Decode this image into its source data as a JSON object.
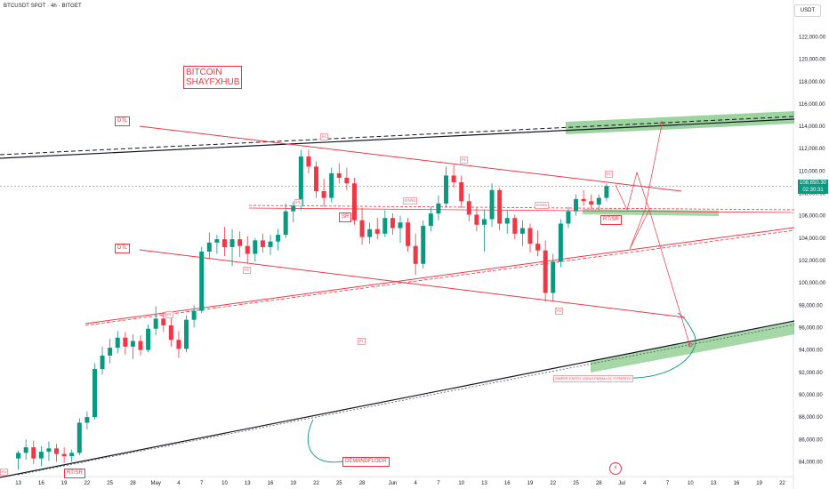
{
  "header": {
    "title": "BTCUSDT SPOT · 4h · BITGET",
    "currency": "USDT"
  },
  "brand": {
    "line1": "BITCOIN",
    "line2": "SHAYFXHUB"
  },
  "price_tag": {
    "price": "108,650.30",
    "timer": "02:30:31"
  },
  "labels": {
    "dtl_top": "DTL",
    "dtl_mid": "DTL",
    "sr": "SR",
    "rt_sr_right": "RT/SR",
    "rt_sr_bottom": "RT/SR",
    "demandfloor": "DEMANDFLOOR",
    "sniper": "SNIPER ENTRY USING PARALLEL STRATEGY"
  },
  "tiny_labels": {
    "rt_rs_1": "RT/RS",
    "rt_rs_2": "RT/RS",
    "p1": "P1",
    "p2": "P1",
    "p3": "P1",
    "p4": "P1",
    "p5": "P1",
    "p6": "P2",
    "p7": "P2",
    "p8": "P2",
    "p9": "P1"
  },
  "colors": {
    "up": "#089981",
    "down": "#f23645",
    "accent_red": "#f23645",
    "green_zone": "#4caf50"
  },
  "chart_data": {
    "type": "candlestick",
    "symbol": "BTCUSDT SPOT",
    "timeframe": "4h",
    "exchange": "BITGET",
    "y_axis": {
      "ylim": [
        83000,
        124500
      ],
      "ticks": [
        "84,000.00",
        "86,000.00",
        "88,000.00",
        "90,000.00",
        "92,000.00",
        "94,000.00",
        "96,000.00",
        "98,000.00",
        "100,000.00",
        "102,000.00",
        "104,000.00",
        "106,000.00",
        "108,000.00",
        "110,000.00",
        "112,000.00",
        "114,000.00",
        "116,000.00",
        "118,000.00",
        "120,000.00",
        "122,000.00"
      ]
    },
    "x_axis": {
      "ticks": [
        {
          "label": "13",
          "t": 0
        },
        {
          "label": "16",
          "t": 3
        },
        {
          "label": "19",
          "t": 6
        },
        {
          "label": "22",
          "t": 9
        },
        {
          "label": "25",
          "t": 12
        },
        {
          "label": "28",
          "t": 15
        },
        {
          "label": "May",
          "t": 18
        },
        {
          "label": "4",
          "t": 21
        },
        {
          "label": "7",
          "t": 24
        },
        {
          "label": "10",
          "t": 27
        },
        {
          "label": "13",
          "t": 30
        },
        {
          "label": "16",
          "t": 33
        },
        {
          "label": "19",
          "t": 36
        },
        {
          "label": "22",
          "t": 39
        },
        {
          "label": "25",
          "t": 42
        },
        {
          "label": "28",
          "t": 45
        },
        {
          "label": "Jun",
          "t": 49
        },
        {
          "label": "4",
          "t": 52
        },
        {
          "label": "7",
          "t": 55
        },
        {
          "label": "10",
          "t": 58
        },
        {
          "label": "13",
          "t": 61
        },
        {
          "label": "16",
          "t": 64
        },
        {
          "label": "19",
          "t": 67
        },
        {
          "label": "22",
          "t": 70
        },
        {
          "label": "25",
          "t": 73
        },
        {
          "label": "28",
          "t": 76
        },
        {
          "label": "Jul",
          "t": 79
        },
        {
          "label": "4",
          "t": 82
        },
        {
          "label": "7",
          "t": 85
        },
        {
          "label": "10",
          "t": 88
        },
        {
          "label": "13",
          "t": 91
        },
        {
          "label": "16",
          "t": 94
        },
        {
          "label": "19",
          "t": 97
        },
        {
          "label": "22",
          "t": 100
        }
      ],
      "t_range": [
        -1,
        101
      ]
    },
    "series": [
      {
        "t": 0,
        "o": 84300,
        "h": 85000,
        "l": 83300,
        "c": 84800
      },
      {
        "t": 1,
        "o": 84800,
        "h": 86000,
        "l": 84200,
        "c": 85300
      },
      {
        "t": 2,
        "o": 85300,
        "h": 85900,
        "l": 83800,
        "c": 84300
      },
      {
        "t": 3,
        "o": 84300,
        "h": 85400,
        "l": 83600,
        "c": 84900
      },
      {
        "t": 4,
        "o": 84900,
        "h": 85800,
        "l": 84100,
        "c": 85200
      },
      {
        "t": 5,
        "o": 85200,
        "h": 85600,
        "l": 84000,
        "c": 84700
      },
      {
        "t": 6,
        "o": 84700,
        "h": 85300,
        "l": 83900,
        "c": 84500
      },
      {
        "t": 7,
        "o": 84500,
        "h": 85100,
        "l": 84000,
        "c": 84800
      },
      {
        "t": 8,
        "o": 84800,
        "h": 87900,
        "l": 84600,
        "c": 87500
      },
      {
        "t": 9,
        "o": 87500,
        "h": 88500,
        "l": 86900,
        "c": 88000
      },
      {
        "t": 10,
        "o": 88000,
        "h": 92800,
        "l": 87800,
        "c": 92300
      },
      {
        "t": 11,
        "o": 92300,
        "h": 94300,
        "l": 91800,
        "c": 93500
      },
      {
        "t": 12,
        "o": 93500,
        "h": 95000,
        "l": 92800,
        "c": 94200
      },
      {
        "t": 13,
        "o": 94200,
        "h": 95700,
        "l": 93700,
        "c": 95100
      },
      {
        "t": 14,
        "o": 95100,
        "h": 95600,
        "l": 93600,
        "c": 94300
      },
      {
        "t": 15,
        "o": 94300,
        "h": 95400,
        "l": 93200,
        "c": 94800
      },
      {
        "t": 16,
        "o": 94800,
        "h": 95300,
        "l": 93500,
        "c": 94000
      },
      {
        "t": 17,
        "o": 94000,
        "h": 96300,
        "l": 93800,
        "c": 95900
      },
      {
        "t": 18,
        "o": 95900,
        "h": 97900,
        "l": 95300,
        "c": 96800
      },
      {
        "t": 19,
        "o": 96800,
        "h": 97400,
        "l": 95600,
        "c": 96200
      },
      {
        "t": 20,
        "o": 96200,
        "h": 96900,
        "l": 94300,
        "c": 94900
      },
      {
        "t": 21,
        "o": 94900,
        "h": 95700,
        "l": 93300,
        "c": 94100
      },
      {
        "t": 22,
        "o": 94100,
        "h": 97100,
        "l": 93800,
        "c": 96700
      },
      {
        "t": 23,
        "o": 96700,
        "h": 98000,
        "l": 96000,
        "c": 97500
      },
      {
        "t": 24,
        "o": 97500,
        "h": 103200,
        "l": 97300,
        "c": 102800
      },
      {
        "t": 25,
        "o": 102800,
        "h": 104500,
        "l": 102200,
        "c": 103600
      },
      {
        "t": 26,
        "o": 103600,
        "h": 104300,
        "l": 102600,
        "c": 103900
      },
      {
        "t": 27,
        "o": 103900,
        "h": 105000,
        "l": 102400,
        "c": 103200
      },
      {
        "t": 28,
        "o": 103200,
        "h": 104800,
        "l": 101500,
        "c": 103900
      },
      {
        "t": 29,
        "o": 103900,
        "h": 104600,
        "l": 102300,
        "c": 103300
      },
      {
        "t": 30,
        "o": 103300,
        "h": 104200,
        "l": 101800,
        "c": 102600
      },
      {
        "t": 31,
        "o": 102600,
        "h": 104000,
        "l": 101900,
        "c": 103800
      },
      {
        "t": 32,
        "o": 103800,
        "h": 104400,
        "l": 102700,
        "c": 103200
      },
      {
        "t": 33,
        "o": 103200,
        "h": 104300,
        "l": 102500,
        "c": 103700
      },
      {
        "t": 34,
        "o": 103700,
        "h": 104800,
        "l": 102900,
        "c": 104300
      },
      {
        "t": 35,
        "o": 104300,
        "h": 107100,
        "l": 104000,
        "c": 106400
      },
      {
        "t": 36,
        "o": 106400,
        "h": 107300,
        "l": 105400,
        "c": 106900
      },
      {
        "t": 37,
        "o": 106900,
        "h": 111900,
        "l": 106500,
        "c": 111300
      },
      {
        "t": 38,
        "o": 111300,
        "h": 111900,
        "l": 109800,
        "c": 110400
      },
      {
        "t": 39,
        "o": 110400,
        "h": 110900,
        "l": 107600,
        "c": 108200
      },
      {
        "t": 40,
        "o": 108200,
        "h": 109300,
        "l": 106800,
        "c": 107600
      },
      {
        "t": 41,
        "o": 107600,
        "h": 110300,
        "l": 107200,
        "c": 109800
      },
      {
        "t": 42,
        "o": 109800,
        "h": 110700,
        "l": 108900,
        "c": 109400
      },
      {
        "t": 43,
        "o": 109400,
        "h": 110300,
        "l": 108300,
        "c": 108900
      },
      {
        "t": 44,
        "o": 108900,
        "h": 109400,
        "l": 105200,
        "c": 105600
      },
      {
        "t": 45,
        "o": 105600,
        "h": 106700,
        "l": 103400,
        "c": 104100
      },
      {
        "t": 46,
        "o": 104100,
        "h": 105400,
        "l": 103500,
        "c": 104800
      },
      {
        "t": 47,
        "o": 104800,
        "h": 105800,
        "l": 103900,
        "c": 104400
      },
      {
        "t": 48,
        "o": 104400,
        "h": 106500,
        "l": 104100,
        "c": 105800
      },
      {
        "t": 49,
        "o": 105800,
        "h": 106200,
        "l": 104300,
        "c": 104900
      },
      {
        "t": 50,
        "o": 104900,
        "h": 106000,
        "l": 103600,
        "c": 105400
      },
      {
        "t": 51,
        "o": 105400,
        "h": 105800,
        "l": 102800,
        "c": 103300
      },
      {
        "t": 52,
        "o": 103300,
        "h": 104400,
        "l": 100700,
        "c": 101700
      },
      {
        "t": 53,
        "o": 101700,
        "h": 105600,
        "l": 101300,
        "c": 105100
      },
      {
        "t": 54,
        "o": 105100,
        "h": 106800,
        "l": 104600,
        "c": 106200
      },
      {
        "t": 55,
        "o": 106200,
        "h": 107800,
        "l": 105600,
        "c": 107100
      },
      {
        "t": 56,
        "o": 107100,
        "h": 110400,
        "l": 106800,
        "c": 109600
      },
      {
        "t": 57,
        "o": 109600,
        "h": 110500,
        "l": 108500,
        "c": 109000
      },
      {
        "t": 58,
        "o": 109000,
        "h": 109600,
        "l": 106700,
        "c": 107300
      },
      {
        "t": 59,
        "o": 107300,
        "h": 108000,
        "l": 105500,
        "c": 106100
      },
      {
        "t": 60,
        "o": 106100,
        "h": 106700,
        "l": 104600,
        "c": 105200
      },
      {
        "t": 61,
        "o": 105200,
        "h": 106500,
        "l": 102800,
        "c": 105700
      },
      {
        "t": 62,
        "o": 105700,
        "h": 108900,
        "l": 105000,
        "c": 108300
      },
      {
        "t": 63,
        "o": 108300,
        "h": 108500,
        "l": 104700,
        "c": 105300
      },
      {
        "t": 64,
        "o": 105300,
        "h": 106500,
        "l": 104400,
        "c": 105800
      },
      {
        "t": 65,
        "o": 105800,
        "h": 106100,
        "l": 103900,
        "c": 104400
      },
      {
        "t": 66,
        "o": 104400,
        "h": 105600,
        "l": 103300,
        "c": 104900
      },
      {
        "t": 67,
        "o": 104900,
        "h": 105300,
        "l": 102700,
        "c": 103500
      },
      {
        "t": 68,
        "o": 103500,
        "h": 104700,
        "l": 102400,
        "c": 102900
      },
      {
        "t": 69,
        "o": 102900,
        "h": 103800,
        "l": 98300,
        "c": 99100
      },
      {
        "t": 70,
        "o": 99100,
        "h": 102600,
        "l": 98400,
        "c": 101900
      },
      {
        "t": 71,
        "o": 101900,
        "h": 105700,
        "l": 101400,
        "c": 105300
      },
      {
        "t": 72,
        "o": 105300,
        "h": 106800,
        "l": 104900,
        "c": 106400
      },
      {
        "t": 73,
        "o": 106400,
        "h": 107900,
        "l": 106000,
        "c": 107500
      },
      {
        "t": 74,
        "o": 107500,
        "h": 108300,
        "l": 106900,
        "c": 107300
      },
      {
        "t": 75,
        "o": 107300,
        "h": 107900,
        "l": 106600,
        "c": 107000
      },
      {
        "t": 76,
        "o": 107000,
        "h": 107900,
        "l": 106500,
        "c": 107600
      },
      {
        "t": 77,
        "o": 107600,
        "h": 108900,
        "l": 107300,
        "c": 108650
      }
    ]
  }
}
